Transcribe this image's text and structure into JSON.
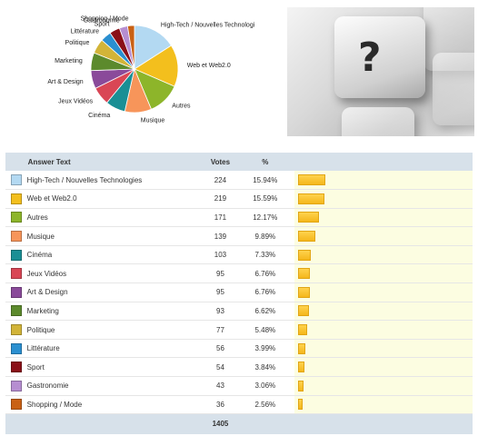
{
  "chart_data": {
    "type": "pie",
    "columns": {
      "answer": "Answer Text",
      "votes": "Votes",
      "percent": "%"
    },
    "categories": [
      "High-Tech / Nouvelles Technologies",
      "Web et Web2.0",
      "Autres",
      "Musique",
      "Cinéma",
      "Jeux Vidéos",
      "Art & Design",
      "Marketing",
      "Politique",
      "Littérature",
      "Sport",
      "Gastronomie",
      "Shopping / Mode"
    ],
    "pie_labels": [
      "High-Tech / Nouvelles Technologi",
      "Web et Web2.0",
      "Autres",
      "Musique",
      "Cinéma",
      "Jeux Vidéos",
      "Art & Design",
      "Marketing",
      "Politique",
      "Littérature",
      "Sport",
      "Gastronomie",
      "Shopping / Mode"
    ],
    "values": [
      224,
      219,
      171,
      139,
      103,
      95,
      95,
      93,
      77,
      56,
      54,
      43,
      36
    ],
    "percents": [
      "15.94%",
      "15.59%",
      "12.17%",
      "9.89%",
      "7.33%",
      "6.76%",
      "6.76%",
      "6.62%",
      "5.48%",
      "3.99%",
      "3.84%",
      "3.06%",
      "2.56%"
    ],
    "colors": [
      "#b3d9f2",
      "#f3bf1d",
      "#8db52a",
      "#f7955a",
      "#1a8f95",
      "#d94655",
      "#8a4a9a",
      "#5c8a2c",
      "#d2b438",
      "#2a8fd0",
      "#8a1018",
      "#b68ed1",
      "#c96114"
    ],
    "total": "1405"
  }
}
